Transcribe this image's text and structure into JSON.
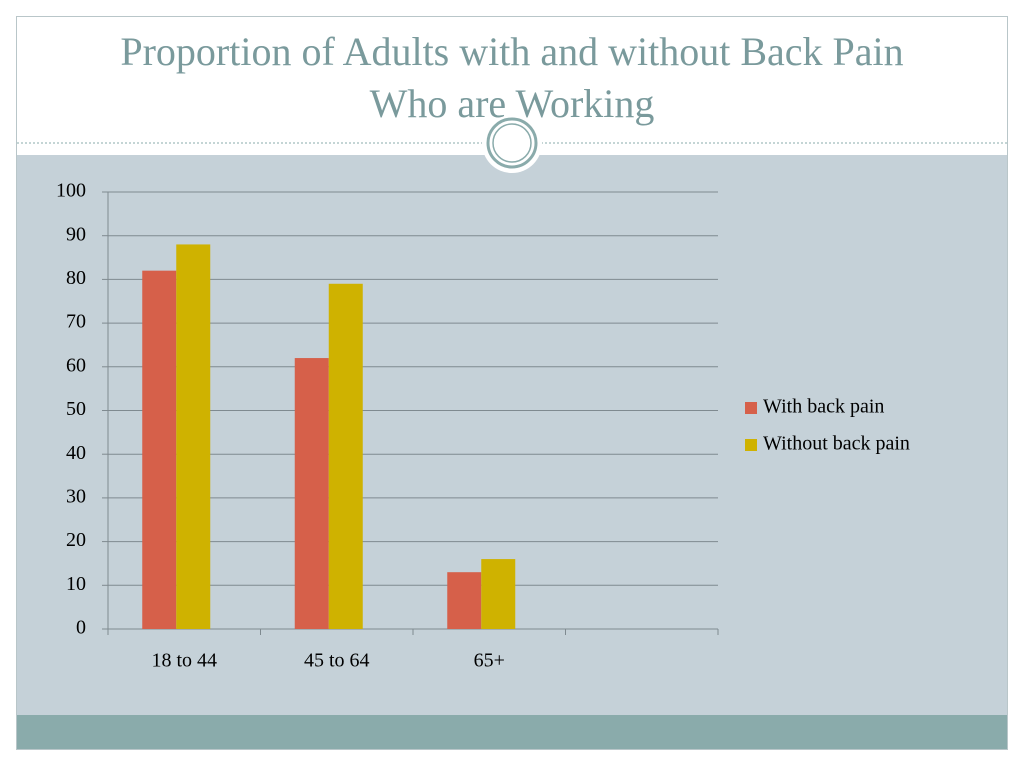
{
  "chart_data": {
    "type": "bar",
    "title": "Proportion of Adults with and without Back Pain Who are Working",
    "categories": [
      "18 to 44",
      "45 to 64",
      "65+",
      null
    ],
    "series": [
      {
        "name": "With back pain",
        "color": "#d6604a",
        "values": [
          82,
          62,
          13,
          null
        ]
      },
      {
        "name": "Without back pain",
        "color": "#cfb200",
        "values": [
          88,
          79,
          16,
          null
        ]
      }
    ],
    "ylim": [
      0,
      100
    ],
    "yticks": [
      0,
      10,
      20,
      30,
      40,
      50,
      60,
      70,
      80,
      90,
      100
    ],
    "grid": true,
    "legend": "right"
  }
}
